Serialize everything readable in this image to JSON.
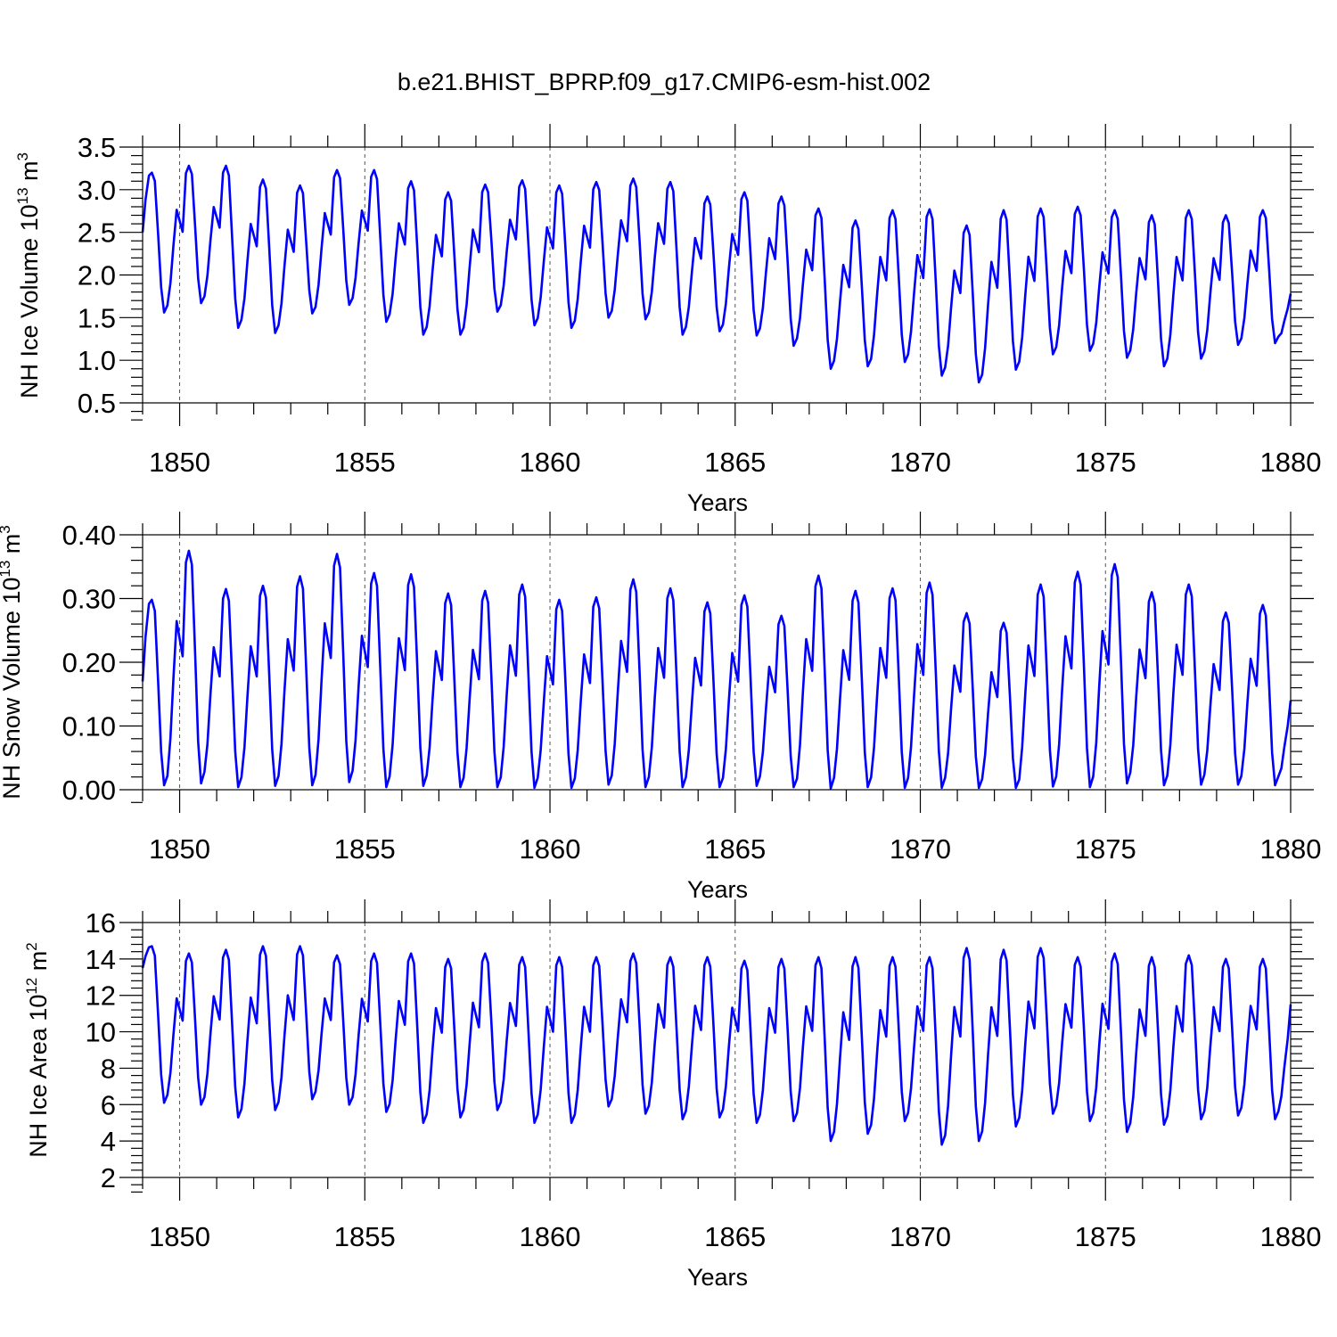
{
  "figure": {
    "title": "b.e21.BHIST_BPRP.f09_g17.CMIP6-esm-hist.002"
  },
  "chart_data": [
    {
      "type": "line",
      "ylabel": "NH Ice Volume 10",
      "ylabel_exponent": "13",
      "ylabel_unit": "m",
      "ylabel_unit_exponent": "3",
      "xlabel": "Years",
      "xlim": [
        1849.0,
        1880.0
      ],
      "ylim": [
        0.5,
        3.5
      ],
      "xticks": [
        1850,
        1855,
        1860,
        1865,
        1870,
        1875,
        1880
      ],
      "xtick_labels": [
        "1850",
        "1855",
        "1860",
        "1865",
        "1870",
        "1875",
        "1880"
      ],
      "yticks": [
        0.5,
        1.0,
        1.5,
        2.0,
        2.5,
        3.0,
        3.5
      ],
      "ytick_labels": [
        "0.5",
        "1.0",
        "1.5",
        "2.0",
        "2.5",
        "3.0",
        "3.5"
      ],
      "vertical_dashed_lines_at": [
        1850,
        1855,
        1860,
        1865,
        1870,
        1875
      ],
      "series": [
        {
          "color": "#0000ff",
          "annual_max": [
            3.2,
            3.28,
            3.28,
            3.12,
            3.05,
            3.23,
            3.23,
            3.1,
            2.97,
            3.06,
            3.11,
            3.05,
            3.09,
            3.13,
            3.09,
            2.92,
            2.97,
            2.92,
            2.78,
            2.64,
            2.76,
            2.77,
            2.58,
            2.76,
            2.78,
            2.8,
            2.76,
            2.7,
            2.76,
            2.7,
            2.76
          ],
          "annual_min": [
            1.56,
            1.67,
            1.38,
            1.32,
            1.55,
            1.65,
            1.45,
            1.3,
            1.3,
            1.57,
            1.41,
            1.38,
            1.5,
            1.48,
            1.3,
            1.34,
            1.29,
            1.17,
            0.9,
            0.93,
            0.98,
            0.82,
            0.74,
            0.89,
            1.07,
            1.11,
            1.03,
            0.93,
            1.02,
            1.18,
            1.2
          ],
          "start_value": 2.5,
          "end_value": 1.78
        }
      ]
    },
    {
      "type": "line",
      "ylabel": "NH Snow Volume 10",
      "ylabel_exponent": "13",
      "ylabel_unit": "m",
      "ylabel_unit_exponent": "3",
      "xlabel": "Years",
      "xlim": [
        1849.0,
        1880.0
      ],
      "ylim": [
        0.0,
        0.4
      ],
      "xticks": [
        1850,
        1855,
        1860,
        1865,
        1870,
        1875,
        1880
      ],
      "xtick_labels": [
        "1850",
        "1855",
        "1860",
        "1865",
        "1870",
        "1875",
        "1880"
      ],
      "yticks": [
        0.0,
        0.1,
        0.2,
        0.3,
        0.4
      ],
      "ytick_labels": [
        "0.00",
        "0.10",
        "0.20",
        "0.30",
        "0.40"
      ],
      "vertical_dashed_lines_at": [
        1850,
        1855,
        1860,
        1865,
        1870,
        1875
      ],
      "series": [
        {
          "color": "#0000ff",
          "annual_max": [
            0.298,
            0.375,
            0.315,
            0.32,
            0.335,
            0.37,
            0.34,
            0.338,
            0.308,
            0.312,
            0.322,
            0.298,
            0.302,
            0.33,
            0.316,
            0.294,
            0.305,
            0.273,
            0.336,
            0.312,
            0.316,
            0.325,
            0.277,
            0.262,
            0.322,
            0.342,
            0.354,
            0.31,
            0.322,
            0.278,
            0.29
          ],
          "annual_min": [
            0.007,
            0.01,
            0.004,
            0.006,
            0.007,
            0.012,
            0.004,
            0.006,
            0.004,
            0.004,
            0.003,
            0.003,
            0.008,
            0.004,
            0.004,
            0.004,
            0.006,
            0.004,
            0.002,
            0.004,
            0.003,
            0.003,
            0.003,
            0.003,
            0.005,
            0.004,
            0.01,
            0.007,
            0.008,
            0.008,
            0.007
          ],
          "start_value": 0.17,
          "end_value": 0.14
        }
      ]
    },
    {
      "type": "line",
      "ylabel": "NH Ice Area 10",
      "ylabel_exponent": "12",
      "ylabel_unit": "m",
      "ylabel_unit_exponent": "2",
      "xlabel": "Years",
      "xlim": [
        1849.0,
        1880.0
      ],
      "ylim": [
        2,
        16
      ],
      "xticks": [
        1850,
        1855,
        1860,
        1865,
        1870,
        1875,
        1880
      ],
      "xtick_labels": [
        "1850",
        "1855",
        "1860",
        "1865",
        "1870",
        "1875",
        "1880"
      ],
      "yticks": [
        2,
        4,
        6,
        8,
        10,
        12,
        14,
        16
      ],
      "ytick_labels": [
        "2",
        "4",
        "6",
        "8",
        "10",
        "12",
        "14",
        "16"
      ],
      "vertical_dashed_lines_at": [
        1850,
        1855,
        1860,
        1865,
        1870,
        1875
      ],
      "series": [
        {
          "color": "#0000ff",
          "annual_max": [
            14.7,
            14.3,
            14.5,
            14.7,
            14.7,
            14.2,
            14.3,
            14.3,
            14.0,
            14.3,
            14.1,
            14.1,
            14.1,
            14.3,
            14.1,
            14.1,
            13.9,
            14.0,
            14.1,
            14.1,
            14.1,
            14.1,
            14.6,
            14.5,
            14.6,
            14.1,
            14.3,
            14.1,
            14.2,
            14.0,
            14.0
          ],
          "annual_min": [
            6.1,
            6.0,
            5.3,
            5.7,
            6.3,
            6.0,
            5.6,
            5.0,
            5.3,
            5.7,
            5.0,
            5.0,
            5.9,
            5.5,
            5.2,
            5.3,
            5.0,
            5.1,
            4.0,
            4.4,
            5.1,
            3.8,
            4.0,
            4.8,
            5.5,
            5.1,
            4.5,
            4.9,
            5.2,
            5.4,
            5.2
          ],
          "start_value": 13.5,
          "end_value": 11.5
        }
      ]
    }
  ]
}
